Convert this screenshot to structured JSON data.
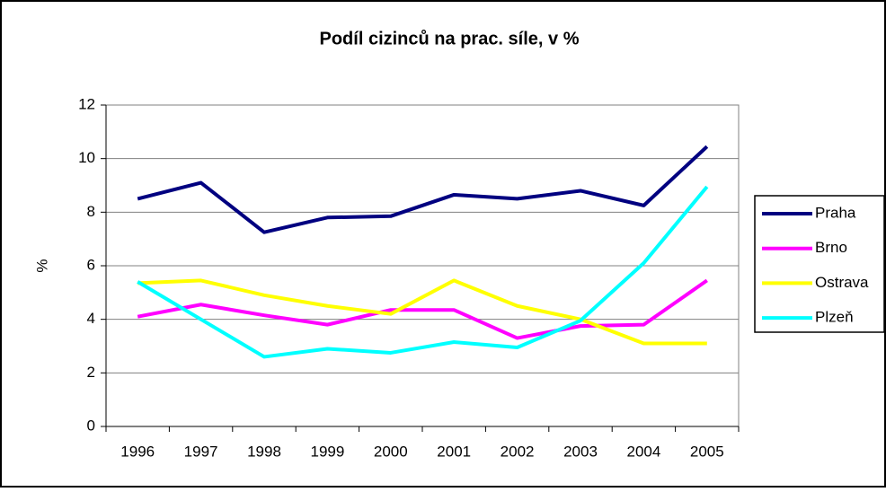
{
  "chart_data": {
    "type": "line",
    "title": "Podíl cizinců na prac. síle, v %",
    "y_label": "%",
    "categories": [
      "1996",
      "1997",
      "1998",
      "1999",
      "2000",
      "2001",
      "2002",
      "2003",
      "2004",
      "2005"
    ],
    "series": [
      {
        "name": "Praha",
        "color": "#000080",
        "values": [
          8.5,
          9.1,
          7.25,
          7.8,
          7.85,
          8.65,
          8.5,
          8.8,
          8.25,
          10.45
        ]
      },
      {
        "name": "Brno",
        "color": "#ff00ff",
        "values": [
          4.1,
          4.55,
          4.15,
          3.8,
          4.35,
          4.35,
          3.3,
          3.75,
          3.8,
          5.45
        ]
      },
      {
        "name": "Ostrava",
        "color": "#ffff00",
        "values": [
          5.35,
          5.45,
          4.9,
          4.5,
          4.2,
          5.45,
          4.5,
          4.0,
          3.1,
          3.1
        ]
      },
      {
        "name": "Plzeň",
        "color": "#00ffff",
        "values": [
          5.4,
          4.0,
          2.6,
          2.9,
          2.75,
          3.15,
          2.95,
          3.95,
          6.1,
          8.95
        ]
      }
    ],
    "ylim": [
      0,
      12
    ],
    "yticks": [
      0,
      2,
      4,
      6,
      8,
      10,
      12
    ],
    "grid": true,
    "legend": "right"
  }
}
